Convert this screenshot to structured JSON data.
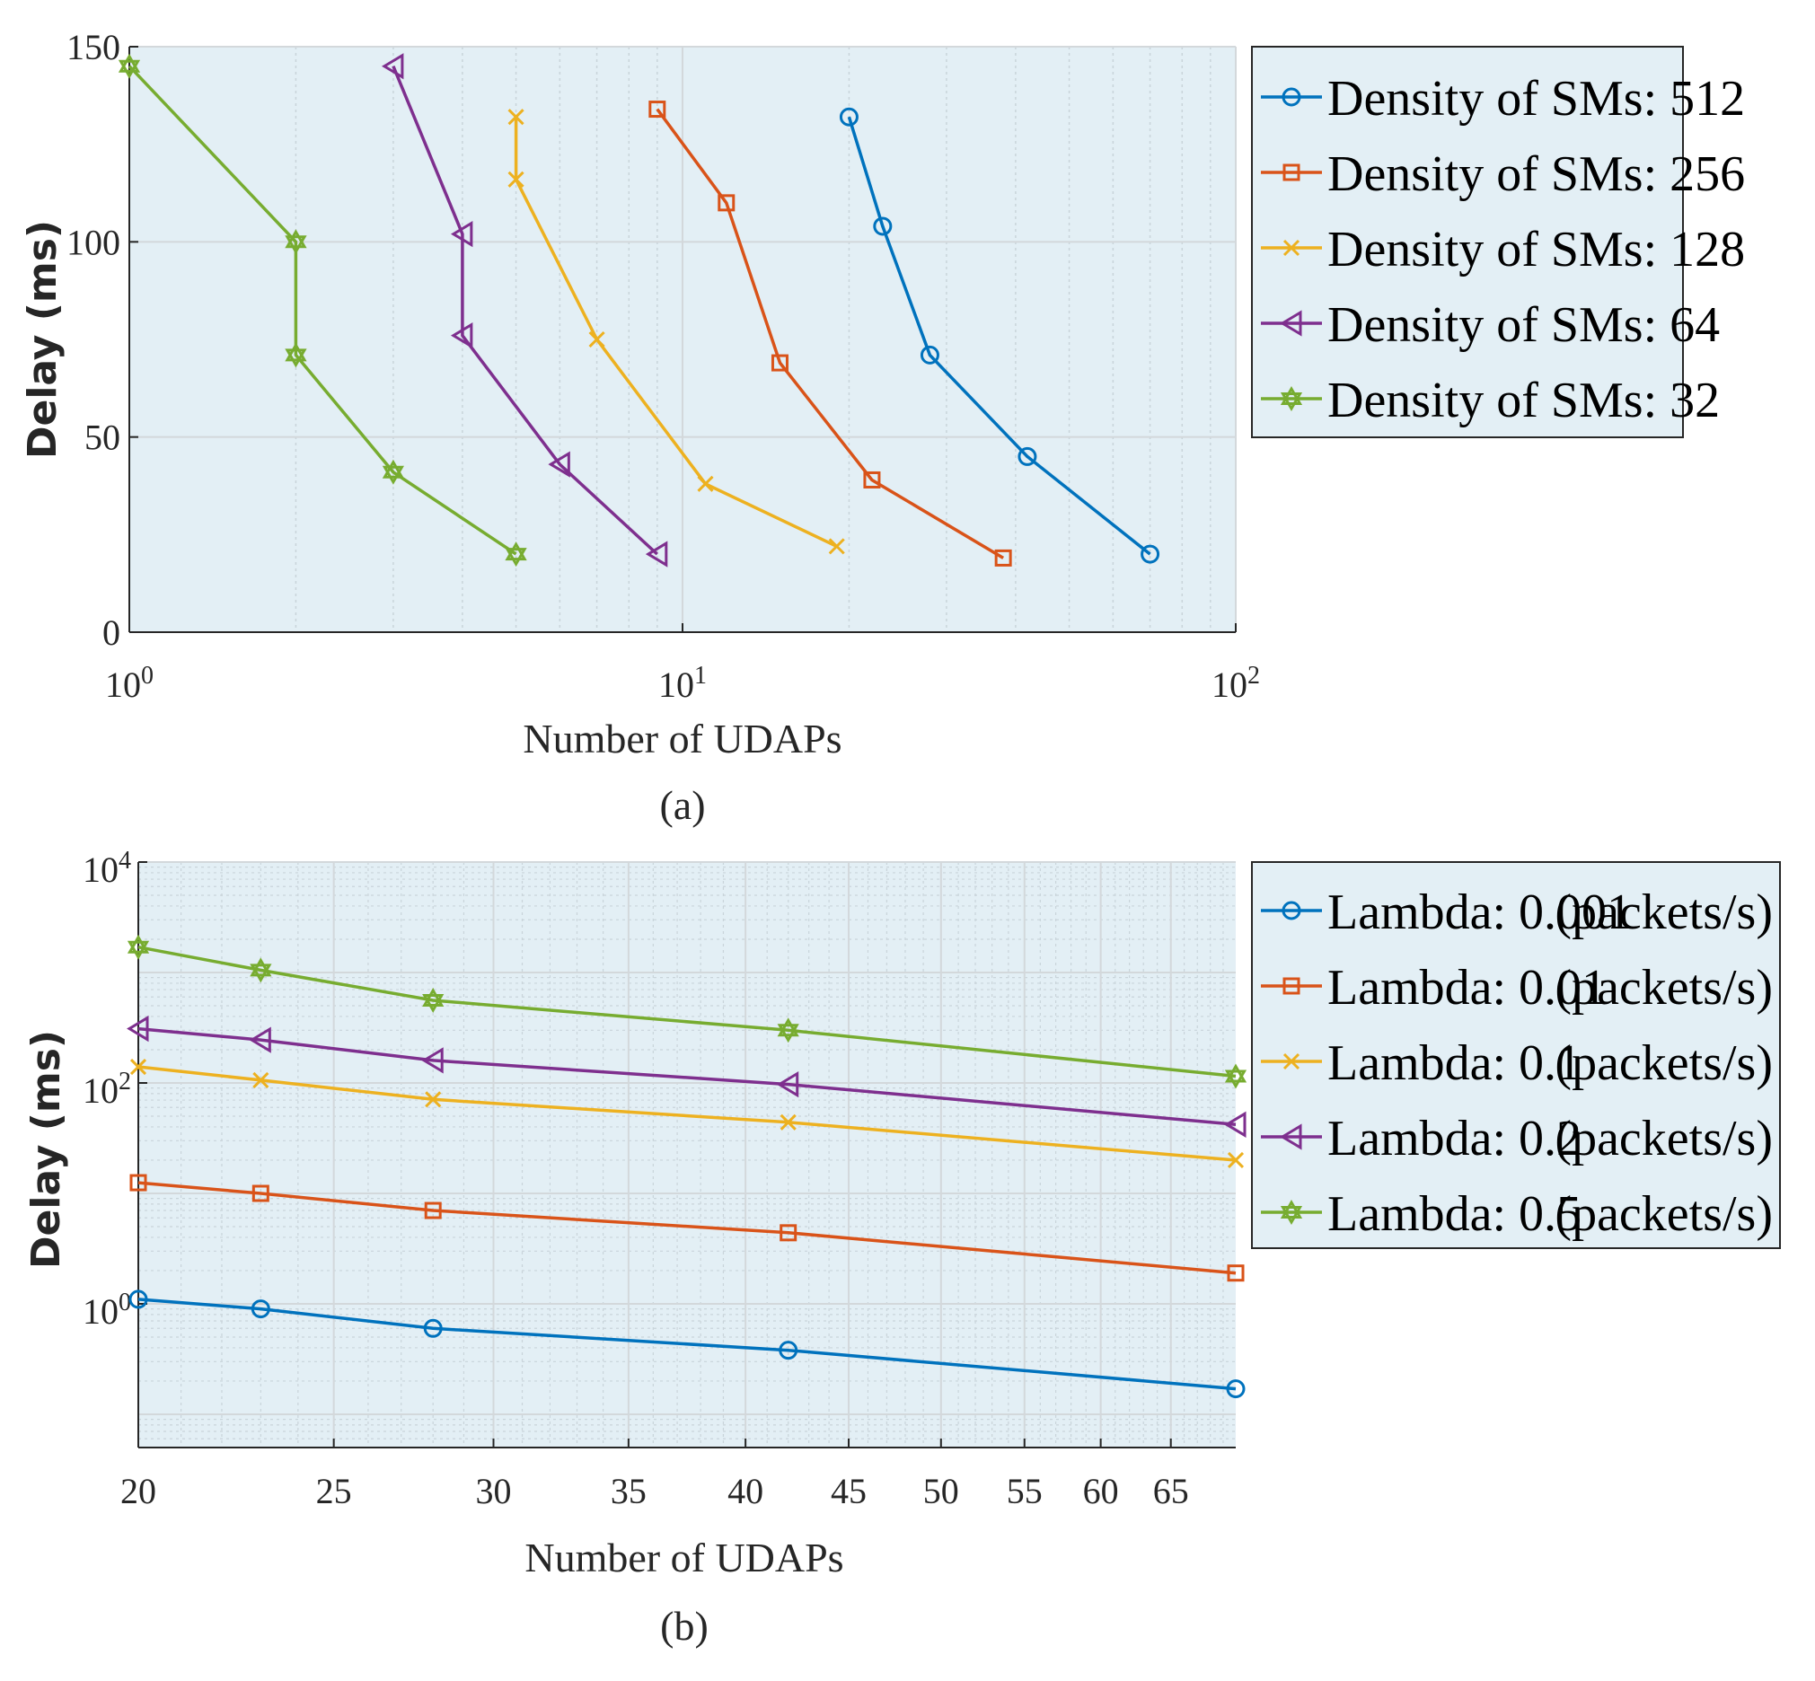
{
  "figure": {
    "panels": [
      "(a)",
      "(b)"
    ]
  },
  "chart_data": [
    {
      "type": "line",
      "caption": "(a)",
      "xlabel": "Number of UDAPs",
      "ylabel": "Delay (ms)",
      "xscale": "log",
      "xlim": [
        1,
        100
      ],
      "ylim": [
        0,
        150
      ],
      "yticks": [
        0,
        50,
        100,
        150
      ],
      "xticks": [
        {
          "value": 1,
          "label": "10",
          "exp": "0"
        },
        {
          "value": 10,
          "label": "10",
          "exp": "1"
        },
        {
          "value": 100,
          "label": "10",
          "exp": "2"
        }
      ],
      "grid": true,
      "legend_position": "outside-right",
      "series": [
        {
          "name": "Density of SMs: 512",
          "color": "#0072BD",
          "marker": "circle",
          "x": [
            20,
            23,
            28,
            42,
            70
          ],
          "y": [
            132,
            104,
            71,
            45,
            20
          ]
        },
        {
          "name": "Density of SMs: 256",
          "color": "#D95319",
          "marker": "square",
          "x": [
            9,
            12,
            15,
            22,
            38
          ],
          "y": [
            134,
            110,
            69,
            39,
            19
          ]
        },
        {
          "name": "Density of SMs: 128",
          "color": "#EDB120",
          "marker": "x",
          "x": [
            5,
            5,
            7,
            11,
            19
          ],
          "y": [
            132,
            116,
            75,
            38,
            22
          ]
        },
        {
          "name": "Density of SMs: 64",
          "color": "#7E2F8E",
          "marker": "triangle-left",
          "x": [
            3,
            4,
            4,
            6,
            9
          ],
          "y": [
            145,
            102,
            76,
            43,
            20
          ]
        },
        {
          "name": "Density of SMs: 32",
          "color": "#77AC30",
          "marker": "hexagram",
          "x": [
            1,
            2,
            2,
            3,
            5
          ],
          "y": [
            145,
            100,
            71,
            41,
            20
          ]
        }
      ]
    },
    {
      "type": "line",
      "caption": "(b)",
      "xlabel": "Number of UDAPs",
      "ylabel": "Delay (ms)",
      "xscale": "log",
      "yscale": "log",
      "xlim": [
        20,
        70
      ],
      "ylim": [
        0.05,
        10000
      ],
      "xticks": [
        20,
        25,
        30,
        35,
        40,
        45,
        50,
        55,
        60,
        65
      ],
      "yticks": [
        {
          "value": 1,
          "label": "10",
          "exp": "0"
        },
        {
          "value": 100,
          "label": "10",
          "exp": "2"
        },
        {
          "value": 10000,
          "label": "10",
          "exp": "4"
        }
      ],
      "grid": true,
      "legend_position": "outside-right",
      "series": [
        {
          "name": "Lambda: 0.001",
          "unit": "(packets/s)",
          "color": "#0072BD",
          "marker": "circle",
          "x": [
            20,
            23,
            28,
            42,
            70
          ],
          "y": [
            1.1,
            0.9,
            0.6,
            0.38,
            0.17
          ]
        },
        {
          "name": "Lambda: 0.01",
          "unit": "(packets/s)",
          "color": "#D95319",
          "marker": "square",
          "x": [
            20,
            23,
            28,
            42,
            70
          ],
          "y": [
            12.5,
            10,
            7,
            4.4,
            1.9
          ]
        },
        {
          "name": "Lambda: 0.1",
          "unit": "(packets/s)",
          "color": "#EDB120",
          "marker": "x",
          "x": [
            20,
            23,
            28,
            42,
            70
          ],
          "y": [
            140,
            106,
            71,
            44,
            20
          ]
        },
        {
          "name": "Lambda: 0.2",
          "unit": "(packets/s)",
          "color": "#7E2F8E",
          "marker": "triangle-left",
          "x": [
            20,
            23,
            28,
            42,
            70
          ],
          "y": [
            310,
            245,
            160,
            97,
            42
          ]
        },
        {
          "name": "Lambda: 0.5",
          "unit": "(packets/s)",
          "color": "#77AC30",
          "marker": "hexagram",
          "x": [
            20,
            23,
            28,
            42,
            70
          ],
          "y": [
            1700,
            1050,
            560,
            300,
            115
          ]
        }
      ]
    }
  ]
}
